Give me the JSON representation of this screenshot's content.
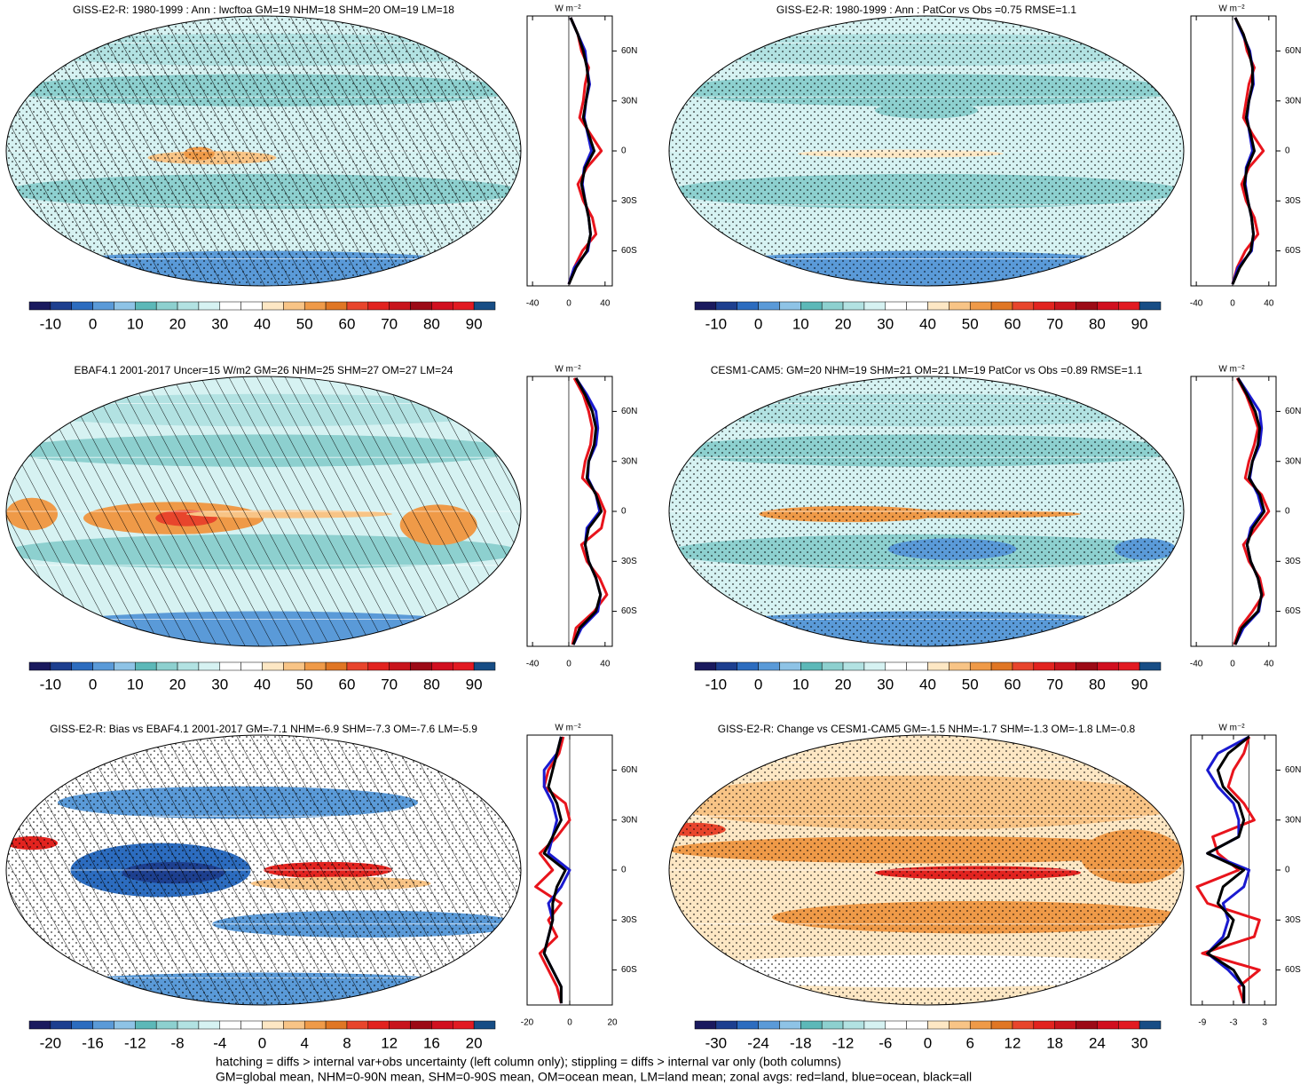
{
  "chart_data": [
    {
      "type": "map",
      "title": "GISS-E2-R: 1980-1999 : Ann : lwcftoa GM=19 NHM=18 SHM=20 OM=19 LM=18",
      "hatching": true,
      "stippling": true,
      "colorbar": {
        "colors": [
          "#1a1a5e",
          "#1d3f8f",
          "#2c6cbf",
          "#5a9ad8",
          "#8ec3e6",
          "#5cb8b8",
          "#8dd0cf",
          "#b2e2e2",
          "#d6f2f2",
          "#ffffff",
          "#ffffff",
          "#fde7c4",
          "#f8c486",
          "#ef9a48",
          "#e07624",
          "#e8452c",
          "#e2231f",
          "#c8141c",
          "#9c0a16",
          "#d10f1f",
          "#e21a22",
          "#174d85"
        ],
        "ticks": [
          -10,
          0,
          10,
          20,
          30,
          40,
          50,
          60,
          70,
          80,
          90
        ]
      },
      "zonal": {
        "type": "line",
        "unit": "W m⁻²",
        "lat": [
          80,
          70,
          60,
          50,
          40,
          30,
          20,
          10,
          0,
          -10,
          -20,
          -30,
          -40,
          -50,
          -60,
          -70,
          -80
        ],
        "xlim": [
          -46,
          48
        ],
        "xticks": [
          -40,
          0,
          40
        ],
        "ylim": [
          -81,
          81
        ],
        "yticks": [
          {
            "value": 60,
            "label": "60N"
          },
          {
            "value": 30,
            "label": "30N"
          },
          0,
          {
            "value": -30,
            "label": "30S"
          },
          {
            "value": -60,
            "label": "60S"
          }
        ],
        "series": [
          {
            "color": "#e8141c",
            "values": [
              2,
              10,
              14,
              22,
              18,
              16,
              12,
              24,
              36,
              20,
              10,
              16,
              26,
              30,
              15,
              6,
              0
            ]
          },
          {
            "color": "#1a1ad0",
            "values": [
              2,
              10,
              18,
              20,
              23,
              19,
              17,
              21,
              25,
              17,
              15,
              18,
              22,
              24,
              21,
              6,
              0
            ]
          },
          {
            "color": "#000000",
            "values": [
              2,
              10,
              16,
              20,
              22,
              19,
              16,
              22,
              28,
              18,
              14,
              18,
              22,
              24,
              20,
              8,
              0
            ]
          }
        ]
      }
    },
    {
      "type": "map",
      "title": "GISS-E2-R: 1980-1999 : Ann : PatCor vs Obs =0.75 RMSE=1.1",
      "hatching": false,
      "stippling": true,
      "colorbar": {
        "colors": [
          "#1a1a5e",
          "#1d3f8f",
          "#2c6cbf",
          "#5a9ad8",
          "#8ec3e6",
          "#5cb8b8",
          "#8dd0cf",
          "#b2e2e2",
          "#d6f2f2",
          "#ffffff",
          "#ffffff",
          "#fde7c4",
          "#f8c486",
          "#ef9a48",
          "#e07624",
          "#e8452c",
          "#e2231f",
          "#c8141c",
          "#9c0a16",
          "#d10f1f",
          "#e21a22",
          "#174d85"
        ],
        "ticks": [
          -10,
          0,
          10,
          20,
          30,
          40,
          50,
          60,
          70,
          80,
          90
        ]
      },
      "zonal": {
        "type": "line",
        "unit": "W m⁻²",
        "lat": [
          80,
          70,
          60,
          50,
          40,
          30,
          20,
          10,
          0,
          -10,
          -20,
          -30,
          -40,
          -50,
          -60,
          -70,
          -80
        ],
        "xlim": [
          -46,
          48
        ],
        "xticks": [
          -40,
          0,
          40
        ],
        "ylim": [
          -81,
          81
        ],
        "yticks": [
          {
            "value": 60,
            "label": "60N"
          },
          {
            "value": 30,
            "label": "30N"
          },
          0,
          {
            "value": -30,
            "label": "30S"
          },
          {
            "value": -60,
            "label": "60S"
          }
        ],
        "series": [
          {
            "color": "#e8141c",
            "values": [
              3,
              12,
              16,
              24,
              18,
              15,
              12,
              22,
              34,
              18,
              10,
              15,
              24,
              28,
              14,
              5,
              0
            ]
          },
          {
            "color": "#1a1ad0",
            "values": [
              3,
              11,
              19,
              22,
              23,
              18,
              16,
              19,
              22,
              15,
              14,
              17,
              21,
              23,
              21,
              6,
              0
            ]
          },
          {
            "color": "#000000",
            "values": [
              3,
              12,
              18,
              22,
              22,
              18,
              15,
              20,
              24,
              16,
              13,
              17,
              21,
              23,
              20,
              8,
              0
            ]
          }
        ]
      }
    },
    {
      "type": "map",
      "title": "EBAF4.1 2001-2017 Uncer=15 W/m2 GM=26 NHM=25 SHM=27 OM=27 LM=24",
      "hatching": true,
      "stippling": false,
      "colorbar": {
        "colors": [
          "#1a1a5e",
          "#1d3f8f",
          "#2c6cbf",
          "#5a9ad8",
          "#8ec3e6",
          "#5cb8b8",
          "#8dd0cf",
          "#b2e2e2",
          "#d6f2f2",
          "#ffffff",
          "#ffffff",
          "#fde7c4",
          "#f8c486",
          "#ef9a48",
          "#e07624",
          "#e8452c",
          "#e2231f",
          "#c8141c",
          "#9c0a16",
          "#d10f1f",
          "#e21a22",
          "#174d85"
        ],
        "ticks": [
          -10,
          0,
          10,
          20,
          30,
          40,
          50,
          60,
          70,
          80,
          90
        ]
      },
      "zonal": {
        "type": "line",
        "unit": "W m⁻²",
        "lat": [
          80,
          70,
          60,
          50,
          40,
          30,
          20,
          10,
          0,
          -10,
          -20,
          -30,
          -40,
          -50,
          -60,
          -70,
          -80
        ],
        "xlim": [
          -46,
          48
        ],
        "xticks": [
          -40,
          0,
          40
        ],
        "ylim": [
          -81,
          81
        ],
        "yticks": [
          {
            "value": 60,
            "label": "60N"
          },
          {
            "value": 30,
            "label": "30N"
          },
          0,
          {
            "value": -30,
            "label": "30S"
          },
          {
            "value": -60,
            "label": "60S"
          }
        ],
        "series": [
          {
            "color": "#e8141c",
            "values": [
              6,
              16,
              22,
              26,
              24,
              18,
              15,
              32,
              40,
              36,
              14,
              20,
              34,
              42,
              28,
              8,
              4
            ]
          },
          {
            "color": "#1a1ad0",
            "values": [
              8,
              20,
              30,
              32,
              30,
              22,
              21,
              30,
              34,
              20,
              18,
              22,
              30,
              35,
              32,
              14,
              5
            ]
          },
          {
            "color": "#000000",
            "values": [
              8,
              18,
              26,
              30,
              28,
              22,
              20,
              30,
              36,
              22,
              18,
              22,
              30,
              35,
              30,
              12,
              5
            ]
          }
        ]
      }
    },
    {
      "type": "map",
      "title": "CESM1-CAM5: GM=20 NHM=19 SHM=21 OM=21 LM=19 PatCor vs Obs =0.89 RMSE=1.1",
      "hatching": false,
      "stippling": true,
      "colorbar": {
        "colors": [
          "#1a1a5e",
          "#1d3f8f",
          "#2c6cbf",
          "#5a9ad8",
          "#8ec3e6",
          "#5cb8b8",
          "#8dd0cf",
          "#b2e2e2",
          "#d6f2f2",
          "#ffffff",
          "#ffffff",
          "#fde7c4",
          "#f8c486",
          "#ef9a48",
          "#e07624",
          "#e8452c",
          "#e2231f",
          "#c8141c",
          "#9c0a16",
          "#d10f1f",
          "#e21a22",
          "#174d85"
        ],
        "ticks": [
          -10,
          0,
          10,
          20,
          30,
          40,
          50,
          60,
          70,
          80,
          90
        ]
      },
      "zonal": {
        "type": "line",
        "unit": "W m⁻²",
        "lat": [
          80,
          70,
          60,
          50,
          40,
          30,
          20,
          10,
          0,
          -10,
          -20,
          -30,
          -40,
          -50,
          -60,
          -70,
          -80
        ],
        "xlim": [
          -46,
          48
        ],
        "xticks": [
          -40,
          0,
          40
        ],
        "ylim": [
          -81,
          81
        ],
        "yticks": [
          {
            "value": 60,
            "label": "60N"
          },
          {
            "value": 30,
            "label": "30N"
          },
          0,
          {
            "value": -30,
            "label": "30S"
          },
          {
            "value": -60,
            "label": "60S"
          }
        ],
        "series": [
          {
            "color": "#e8141c",
            "values": [
              5,
              15,
              22,
              28,
              24,
              18,
              14,
              32,
              40,
              26,
              12,
              18,
              30,
              34,
              22,
              8,
              2
            ]
          },
          {
            "color": "#1a1ad0",
            "values": [
              6,
              18,
              30,
              32,
              30,
              22,
              19,
              28,
              33,
              20,
              16,
              20,
              28,
              32,
              29,
              12,
              3
            ]
          },
          {
            "color": "#000000",
            "values": [
              6,
              16,
              25,
              30,
              28,
              22,
              18,
              30,
              35,
              22,
              16,
              20,
              28,
              32,
              28,
              10,
              3
            ]
          }
        ]
      }
    },
    {
      "type": "map",
      "title": "GISS-E2-R: Bias vs EBAF4.1 2001-2017 GM=-7.1 NHM=-6.9 SHM=-7.3 OM=-7.6 LM=-5.9",
      "hatching": true,
      "stippling": true,
      "colorbar": {
        "colors": [
          "#1a1a5e",
          "#1d3f8f",
          "#2c6cbf",
          "#5a9ad8",
          "#8ec3e6",
          "#5cb8b8",
          "#8dd0cf",
          "#b2e2e2",
          "#d6f2f2",
          "#ffffff",
          "#ffffff",
          "#fde7c4",
          "#f8c486",
          "#ef9a48",
          "#e07624",
          "#e8452c",
          "#e2231f",
          "#c8141c",
          "#9c0a16",
          "#d10f1f",
          "#e21a22",
          "#174d85"
        ],
        "ticks": [
          -20,
          -16,
          -12,
          -8,
          -4,
          0,
          4,
          8,
          12,
          16,
          20
        ]
      },
      "zonal": {
        "type": "line",
        "unit": "W m⁻²",
        "lat": [
          80,
          70,
          60,
          50,
          40,
          30,
          20,
          10,
          0,
          -10,
          -20,
          -30,
          -40,
          -50,
          -60,
          -70,
          -80
        ],
        "xlim": [
          -20,
          20
        ],
        "xticks": [
          -20,
          0,
          20
        ],
        "ylim": [
          -81,
          81
        ],
        "yticks": [
          {
            "value": 60,
            "label": "60N"
          },
          {
            "value": 30,
            "label": "30N"
          },
          0,
          {
            "value": -30,
            "label": "30S"
          },
          {
            "value": -60,
            "label": "60S"
          }
        ],
        "series": [
          {
            "color": "#e8141c",
            "values": [
              -3,
              -5,
              -10,
              -12,
              -2,
              0,
              -6,
              -14,
              -8,
              -16,
              -4,
              -10,
              -6,
              -14,
              -10,
              -6,
              -4
            ]
          },
          {
            "color": "#1a1ad0",
            "values": [
              -4,
              -6,
              -12,
              -12,
              -8,
              -6,
              -8,
              -10,
              0,
              -4,
              -10,
              -8,
              -10,
              -12,
              -8,
              -4,
              -4
            ]
          },
          {
            "color": "#000000",
            "values": [
              -4,
              -6,
              -8,
              -10,
              -6,
              -4,
              -8,
              -12,
              -2,
              -6,
              -8,
              -8,
              -10,
              -12,
              -8,
              -4,
              -4
            ]
          }
        ]
      }
    },
    {
      "type": "map",
      "title": "GISS-E2-R: Change vs CESM1-CAM5 GM=-1.5 NHM=-1.7 SHM=-1.3 OM=-1.8 LM=-0.8",
      "hatching": false,
      "stippling": true,
      "colorbar": {
        "colors": [
          "#1a1a5e",
          "#1d3f8f",
          "#2c6cbf",
          "#5a9ad8",
          "#8ec3e6",
          "#5cb8b8",
          "#8dd0cf",
          "#b2e2e2",
          "#d6f2f2",
          "#ffffff",
          "#ffffff",
          "#fde7c4",
          "#f8c486",
          "#ef9a48",
          "#e07624",
          "#e8452c",
          "#e2231f",
          "#c8141c",
          "#9c0a16",
          "#d10f1f",
          "#e21a22",
          "#174d85"
        ],
        "ticks": [
          -30,
          -24,
          -18,
          -12,
          -6,
          0,
          6,
          12,
          18,
          24,
          30
        ]
      },
      "zonal": {
        "type": "line",
        "unit": "W m⁻²",
        "lat": [
          80,
          70,
          60,
          50,
          40,
          30,
          20,
          10,
          0,
          -10,
          -20,
          -30,
          -40,
          -50,
          -60,
          -70,
          -80
        ],
        "xlim": [
          -11.2,
          5.2
        ],
        "xticks": [
          -9,
          -3,
          3
        ],
        "ylim": [
          -81,
          81
        ],
        "yticks": [
          {
            "value": 60,
            "label": "60N"
          },
          {
            "value": 30,
            "label": "30N"
          },
          0,
          {
            "value": -30,
            "label": "30S"
          },
          {
            "value": -60,
            "label": "60S"
          }
        ],
        "series": [
          {
            "color": "#e8141c",
            "values": [
              0,
              -1,
              -3,
              -4,
              -1,
              1,
              -7,
              -6,
              -2,
              -10,
              -8,
              2,
              1,
              -9,
              2,
              -2,
              -1
            ]
          },
          {
            "color": "#1a1ad0",
            "values": [
              0,
              -6,
              -8,
              -6,
              -3,
              -2,
              -2,
              -8,
              0,
              -1,
              -5,
              -4,
              -5,
              -8,
              -4,
              -1,
              -1
            ]
          },
          {
            "color": "#000000",
            "values": [
              0,
              -4,
              -6,
              -5,
              -2,
              -1,
              -2,
              -8,
              -1,
              -5,
              -6,
              -3,
              -4,
              -8,
              -3,
              -1,
              -1
            ]
          }
        ]
      }
    }
  ],
  "notes": [
    "hatching = diffs > internal var+obs uncertainty (left column only); stippling = diffs > internal var only (both columns)",
    "GM=global mean, NHM=0-90N mean, SHM=0-90S mean, OM=ocean mean, LM=land mean; zonal avgs: red=land, blue=ocean, black=all"
  ]
}
